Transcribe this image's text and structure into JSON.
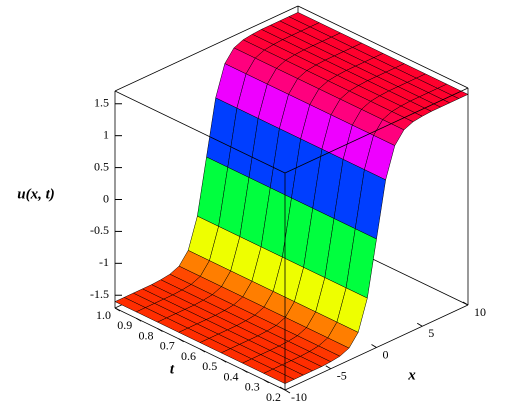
{
  "chart_data": {
    "type": "surface",
    "zlabel": "u(x, t)",
    "xlabel": "x",
    "tlabel": "t",
    "x": [
      -10,
      -9,
      -8,
      -7,
      -6,
      -5,
      -4,
      -3,
      -2,
      -1,
      0,
      1,
      2,
      3,
      4,
      5,
      6,
      7,
      8,
      9,
      10
    ],
    "t": [
      0.2,
      0.3,
      0.4,
      0.5,
      0.6,
      0.7,
      0.8,
      0.9,
      1.0
    ],
    "z": [
      [
        -1.6,
        -1.6,
        -1.6,
        -1.6,
        -1.6,
        -1.59,
        -1.57,
        -1.51,
        -1.33,
        -0.86,
        0,
        0.86,
        1.33,
        1.51,
        1.57,
        1.59,
        1.6,
        1.6,
        1.6,
        1.6,
        1.6
      ],
      [
        -1.6,
        -1.6,
        -1.6,
        -1.6,
        -1.6,
        -1.59,
        -1.57,
        -1.51,
        -1.33,
        -0.86,
        0,
        0.86,
        1.33,
        1.51,
        1.57,
        1.59,
        1.6,
        1.6,
        1.6,
        1.6,
        1.6
      ],
      [
        -1.6,
        -1.6,
        -1.6,
        -1.6,
        -1.6,
        -1.59,
        -1.57,
        -1.51,
        -1.33,
        -0.86,
        0,
        0.86,
        1.33,
        1.51,
        1.57,
        1.59,
        1.6,
        1.6,
        1.6,
        1.6,
        1.6
      ],
      [
        -1.6,
        -1.6,
        -1.6,
        -1.6,
        -1.6,
        -1.59,
        -1.57,
        -1.51,
        -1.33,
        -0.86,
        0,
        0.86,
        1.33,
        1.51,
        1.57,
        1.59,
        1.6,
        1.6,
        1.6,
        1.6,
        1.6
      ],
      [
        -1.6,
        -1.6,
        -1.6,
        -1.6,
        -1.6,
        -1.59,
        -1.57,
        -1.51,
        -1.33,
        -0.86,
        0,
        0.86,
        1.33,
        1.51,
        1.57,
        1.59,
        1.6,
        1.6,
        1.6,
        1.6,
        1.6
      ],
      [
        -1.6,
        -1.6,
        -1.6,
        -1.6,
        -1.6,
        -1.59,
        -1.57,
        -1.51,
        -1.33,
        -0.86,
        0,
        0.86,
        1.33,
        1.51,
        1.57,
        1.59,
        1.6,
        1.6,
        1.6,
        1.6,
        1.6
      ],
      [
        -1.6,
        -1.6,
        -1.6,
        -1.6,
        -1.6,
        -1.59,
        -1.57,
        -1.51,
        -1.33,
        -0.86,
        0,
        0.86,
        1.33,
        1.51,
        1.57,
        1.59,
        1.6,
        1.6,
        1.6,
        1.6,
        1.6
      ],
      [
        -1.6,
        -1.6,
        -1.6,
        -1.6,
        -1.6,
        -1.59,
        -1.57,
        -1.51,
        -1.33,
        -0.86,
        0,
        0.86,
        1.33,
        1.51,
        1.57,
        1.59,
        1.6,
        1.6,
        1.6,
        1.6,
        1.6
      ],
      [
        -1.6,
        -1.6,
        -1.6,
        -1.6,
        -1.6,
        -1.59,
        -1.57,
        -1.51,
        -1.33,
        -0.86,
        0,
        0.86,
        1.33,
        1.51,
        1.57,
        1.59,
        1.6,
        1.6,
        1.6,
        1.6,
        1.6
      ]
    ],
    "xlim": [
      -10,
      10
    ],
    "tlim": [
      0.2,
      1.0
    ],
    "zlim": [
      -1.7,
      1.7
    ],
    "xticks": [
      -10,
      -5,
      0,
      5,
      10
    ],
    "tticks": [
      0.2,
      0.3,
      0.4,
      0.5,
      0.6,
      0.7,
      0.8,
      0.9,
      {
        "value": 1.0,
        "label": "1.0"
      }
    ],
    "zticks": [
      -1.5,
      -1,
      -0.5,
      0,
      0.5,
      1,
      1.5
    ]
  }
}
